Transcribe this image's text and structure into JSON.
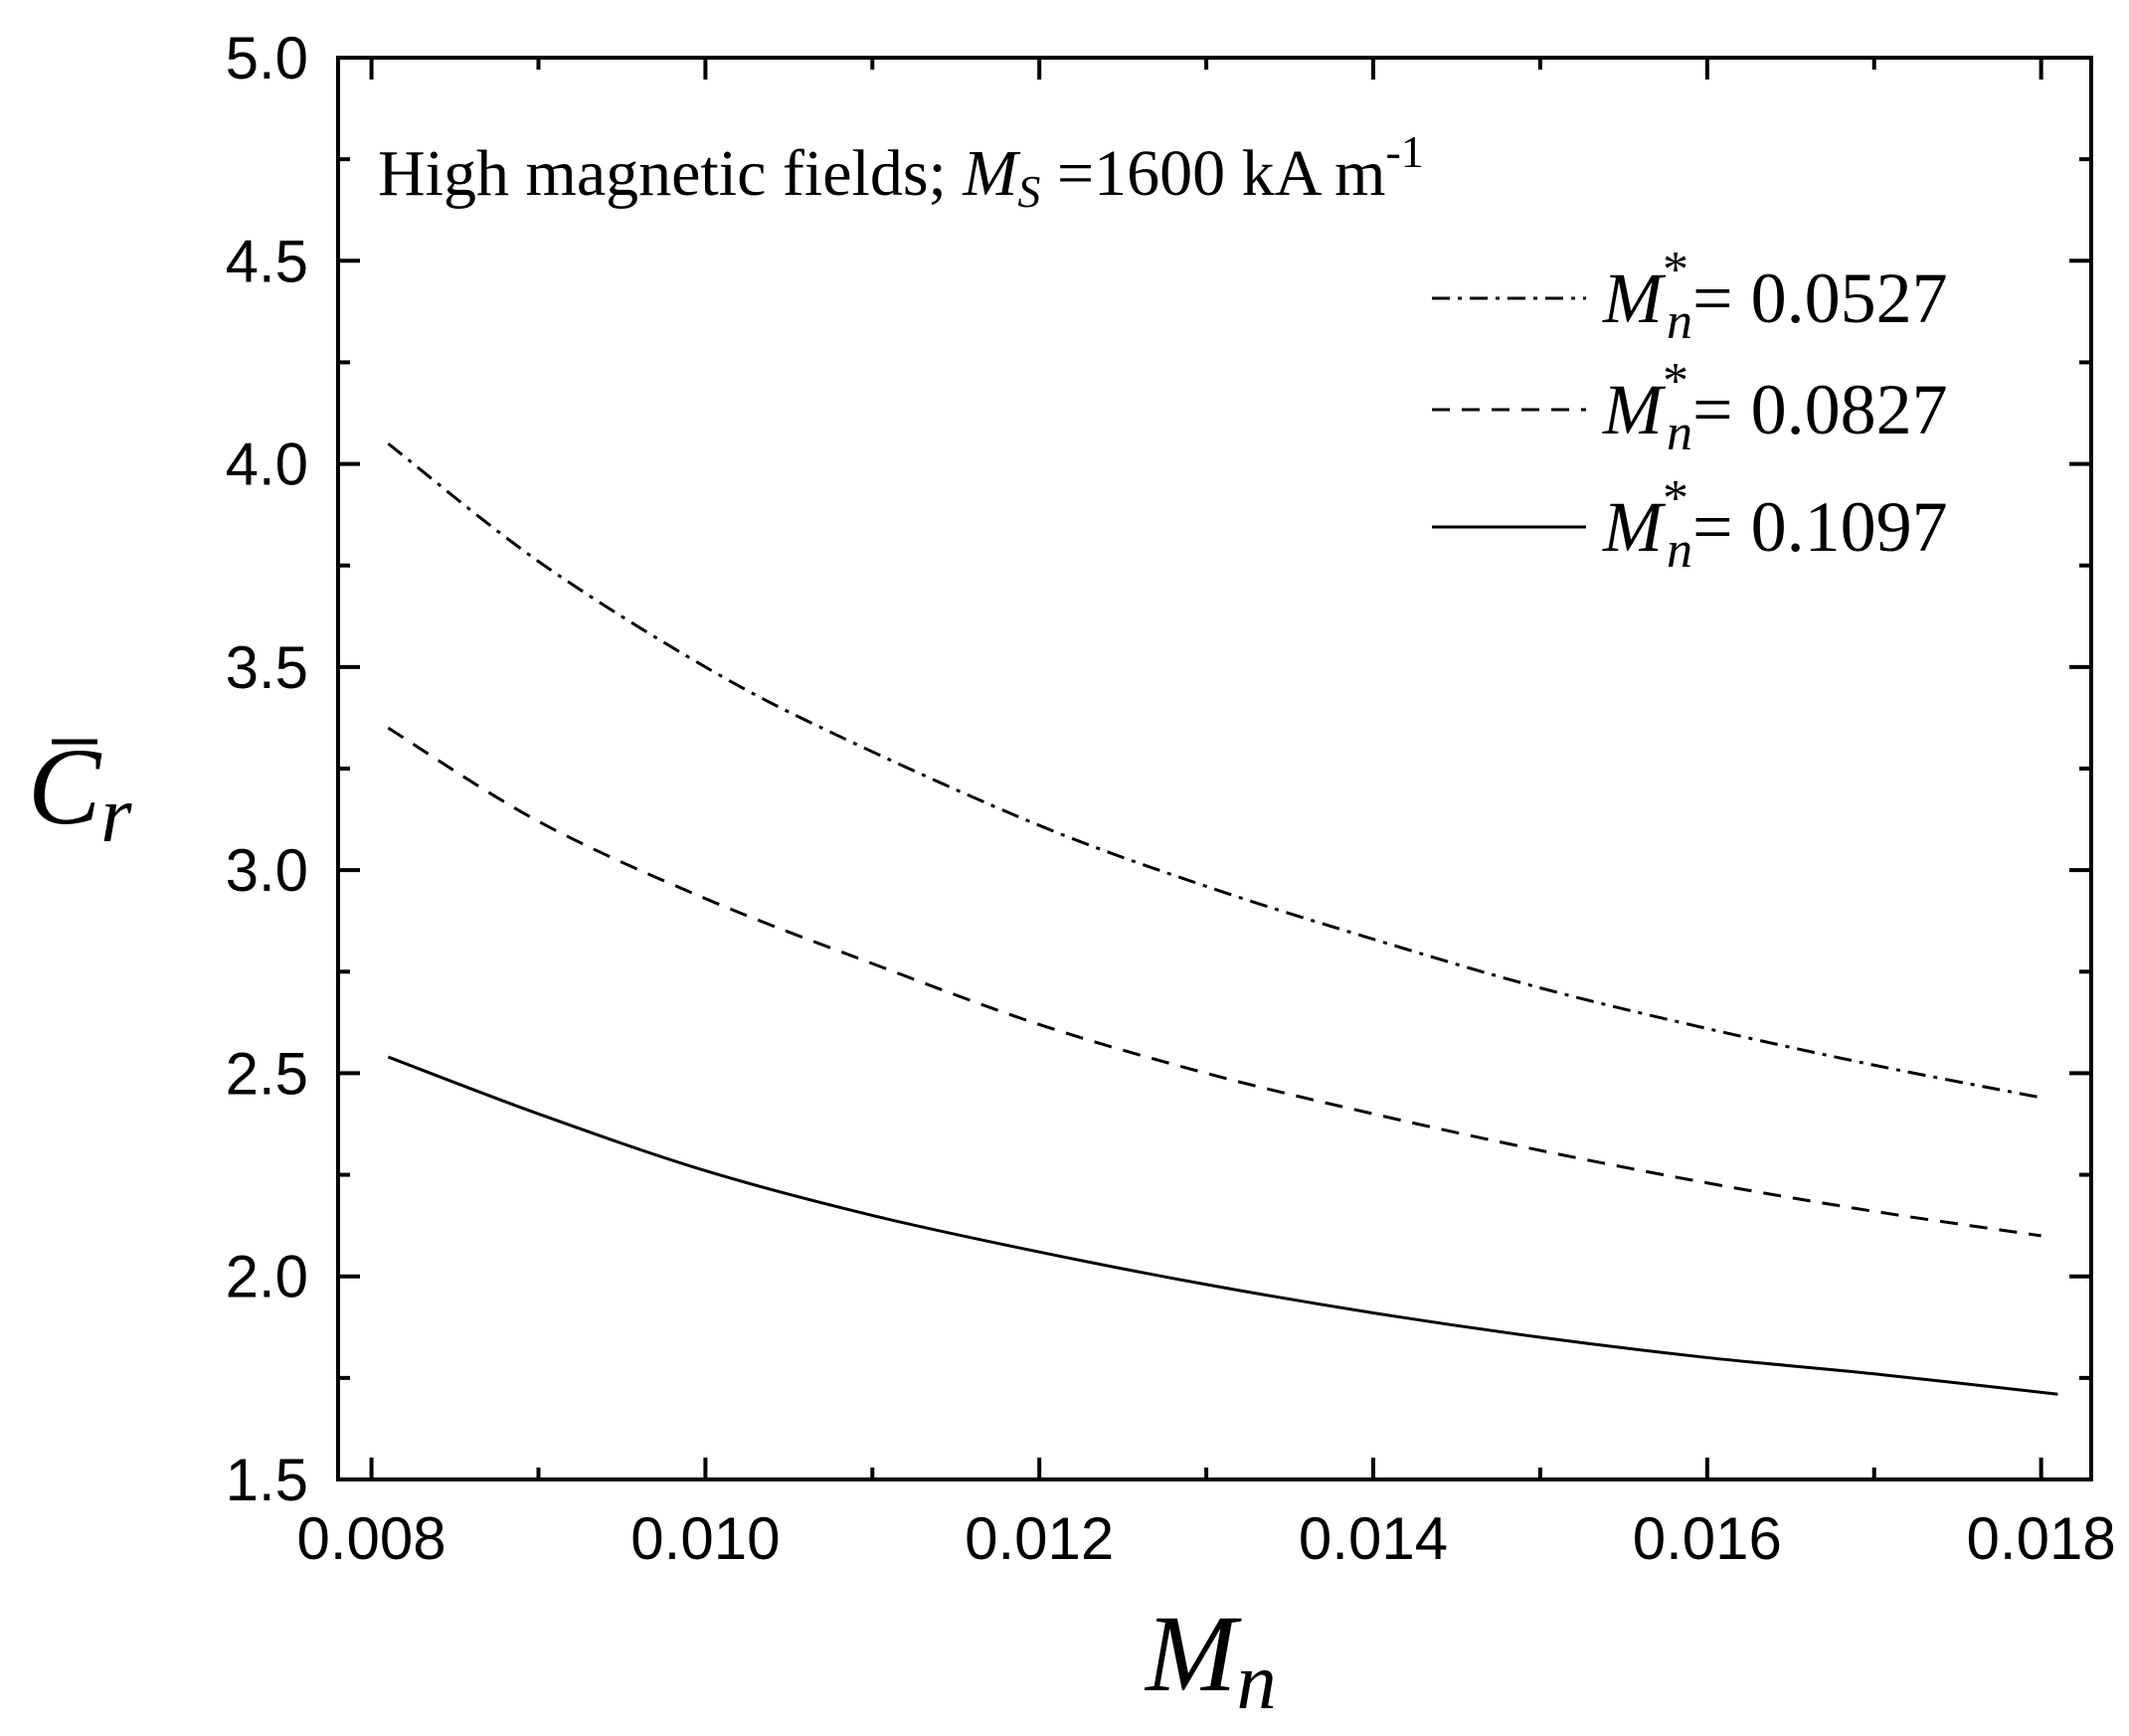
{
  "chart_data": {
    "type": "line",
    "annotation": {
      "prefix": "High magnetic fields; ",
      "var_main": "M",
      "var_sub": "S",
      "value": " =1600 kA m",
      "exp": "-1"
    },
    "xlabel": {
      "main": "M",
      "sub": "n"
    },
    "ylabel": {
      "main": "C",
      "sub": "r"
    },
    "xlim": [
      0.0078,
      0.0183
    ],
    "ylim": [
      1.5,
      5.0
    ],
    "x_ticks": [
      "0.008",
      "0.010",
      "0.012",
      "0.014",
      "0.016",
      "0.018"
    ],
    "y_ticks": [
      "1.5",
      "2.0",
      "2.5",
      "3.0",
      "3.5",
      "4.0",
      "4.5",
      "5.0"
    ],
    "legend_position": "top-right",
    "series": [
      {
        "name": "M_n* = 0.0527",
        "legend": {
          "main": "M",
          "sup": "*",
          "sub": "n",
          "value": "= 0.0527"
        },
        "style": "dash-dot",
        "x": [
          0.0081,
          0.009,
          0.01,
          0.0108,
          0.012,
          0.013,
          0.014,
          0.015,
          0.016,
          0.017,
          0.018
        ],
        "y": [
          4.05,
          3.76,
          3.5,
          3.33,
          3.11,
          2.96,
          2.83,
          2.71,
          2.61,
          2.52,
          2.44
        ]
      },
      {
        "name": "M_n* = 0.0827",
        "legend": {
          "main": "M",
          "sup": "*",
          "sub": "n",
          "value": "= 0.0827"
        },
        "style": "dashed",
        "x": [
          0.0081,
          0.009,
          0.01,
          0.011,
          0.012,
          0.013,
          0.014,
          0.015,
          0.016,
          0.017,
          0.018
        ],
        "y": [
          3.35,
          3.12,
          2.93,
          2.77,
          2.62,
          2.5,
          2.4,
          2.31,
          2.23,
          2.16,
          2.1
        ]
      },
      {
        "name": "M_n* = 0.1097",
        "legend": {
          "main": "M",
          "sup": "*",
          "sub": "n",
          "value": "= 0.1097"
        },
        "style": "solid",
        "x": [
          0.0081,
          0.009,
          0.01,
          0.011,
          0.012,
          0.013,
          0.014,
          0.015,
          0.016,
          0.017,
          0.0181
        ],
        "y": [
          2.54,
          2.4,
          2.26,
          2.15,
          2.06,
          1.98,
          1.91,
          1.85,
          1.8,
          1.76,
          1.71
        ]
      }
    ]
  }
}
